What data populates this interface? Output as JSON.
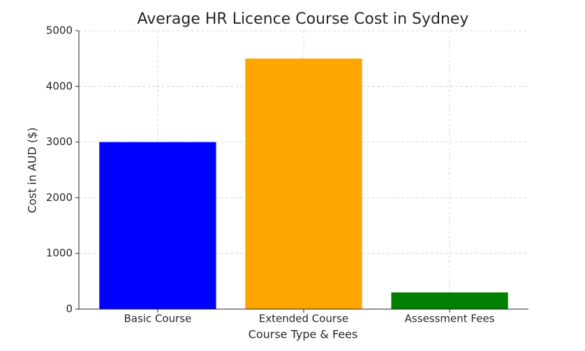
{
  "chart_data": {
    "type": "bar",
    "title": "Average HR Licence Course Cost in Sydney",
    "x_label": "Course Type & Fees",
    "y_label": "Cost in AUD ($)",
    "categories": [
      "Basic Course",
      "Extended Course",
      "Assessment Fees"
    ],
    "values": [
      3000,
      4500,
      300
    ],
    "colors": [
      "#0000ff",
      "#ffa500",
      "#008000"
    ],
    "ylim": [
      0,
      5000
    ],
    "yticks": [
      0,
      1000,
      2000,
      3000,
      4000,
      5000
    ],
    "grid": true
  }
}
